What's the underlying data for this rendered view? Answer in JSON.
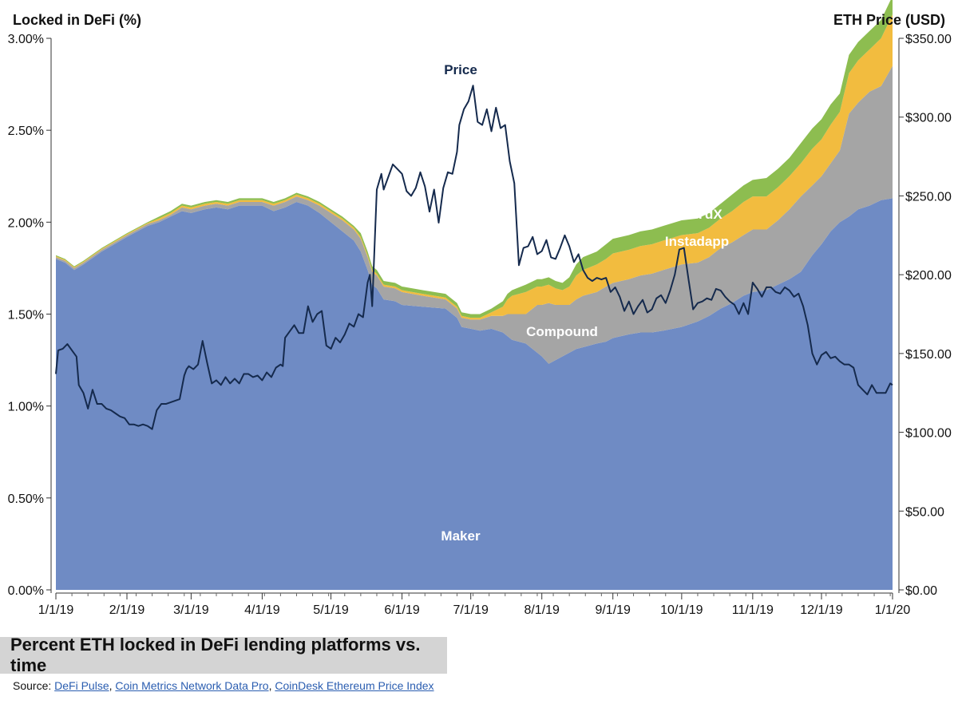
{
  "chart_data": {
    "type": "area",
    "title": "Percent ETH locked in DeFi lending platforms vs. time",
    "left_axis": {
      "label": "Locked in DeFi (%)",
      "min": 0,
      "max": 3.0,
      "ticks": [
        0,
        0.5,
        1.0,
        1.5,
        2.0,
        2.5,
        3.0
      ],
      "tick_labels": [
        "0.00%",
        "0.50%",
        "1.00%",
        "1.50%",
        "2.00%",
        "2.50%",
        "3.00%"
      ]
    },
    "right_axis": {
      "label": "ETH Price (USD)",
      "min": 0,
      "max": 350,
      "ticks": [
        0,
        50,
        100,
        150,
        200,
        250,
        300,
        350
      ],
      "tick_labels": [
        "$0.00",
        "$50.00",
        "$100.00",
        "$150.00",
        "$200.00",
        "$250.00",
        "$300.00",
        "$350.00"
      ]
    },
    "x_axis": {
      "start_day": 0,
      "end_day": 365,
      "ticks": [
        0,
        31,
        59,
        90,
        120,
        151,
        181,
        212,
        243,
        273,
        304,
        334,
        365
      ],
      "tick_labels": [
        "1/1/19",
        "2/1/19",
        "3/1/19",
        "4/1/19",
        "5/1/19",
        "6/1/19",
        "7/1/19",
        "8/1/19",
        "9/1/19",
        "10/1/19",
        "11/1/19",
        "12/1/19",
        "1/1/20"
      ]
    },
    "x_days": [
      0,
      4,
      8,
      12,
      20,
      31,
      40,
      45,
      50,
      55,
      59,
      65,
      70,
      75,
      80,
      90,
      95,
      100,
      105,
      110,
      115,
      120,
      125,
      130,
      133,
      136,
      138,
      140,
      143,
      148,
      151,
      160,
      170,
      175,
      177,
      181,
      185,
      190,
      195,
      197,
      199,
      205,
      210,
      212,
      215,
      218,
      221,
      224,
      227,
      230,
      236,
      240,
      243,
      250,
      255,
      260,
      265,
      273,
      280,
      285,
      290,
      295,
      300,
      304,
      310,
      315,
      320,
      325,
      330,
      334,
      338,
      342,
      346,
      350,
      355,
      360,
      365
    ],
    "series": [
      {
        "name": "Maker",
        "color": "#6f8bc4",
        "values": [
          1.8,
          1.78,
          1.74,
          1.77,
          1.84,
          1.92,
          1.98,
          2.0,
          2.03,
          2.06,
          2.05,
          2.07,
          2.08,
          2.07,
          2.09,
          2.09,
          2.06,
          2.08,
          2.11,
          2.09,
          2.05,
          2.0,
          1.95,
          1.9,
          1.84,
          1.74,
          1.66,
          1.64,
          1.58,
          1.57,
          1.55,
          1.54,
          1.53,
          1.48,
          1.43,
          1.42,
          1.41,
          1.42,
          1.4,
          1.38,
          1.36,
          1.34,
          1.29,
          1.27,
          1.23,
          1.25,
          1.27,
          1.29,
          1.31,
          1.32,
          1.34,
          1.35,
          1.37,
          1.39,
          1.4,
          1.4,
          1.41,
          1.43,
          1.46,
          1.49,
          1.53,
          1.56,
          1.6,
          1.62,
          1.63,
          1.66,
          1.69,
          1.73,
          1.82,
          1.88,
          1.95,
          2.0,
          2.03,
          2.07,
          2.09,
          2.12,
          2.13
        ]
      },
      {
        "name": "Compound",
        "color": "#a5a5a5",
        "values": [
          0.01,
          0.01,
          0.01,
          0.01,
          0.01,
          0.01,
          0.01,
          0.01,
          0.01,
          0.02,
          0.02,
          0.02,
          0.02,
          0.02,
          0.02,
          0.02,
          0.03,
          0.03,
          0.03,
          0.03,
          0.04,
          0.05,
          0.06,
          0.06,
          0.07,
          0.07,
          0.07,
          0.07,
          0.07,
          0.07,
          0.07,
          0.06,
          0.05,
          0.05,
          0.05,
          0.05,
          0.06,
          0.07,
          0.09,
          0.12,
          0.14,
          0.16,
          0.26,
          0.28,
          0.33,
          0.3,
          0.28,
          0.26,
          0.27,
          0.28,
          0.28,
          0.3,
          0.3,
          0.3,
          0.31,
          0.32,
          0.33,
          0.34,
          0.32,
          0.32,
          0.33,
          0.33,
          0.33,
          0.34,
          0.33,
          0.35,
          0.38,
          0.41,
          0.38,
          0.37,
          0.37,
          0.39,
          0.56,
          0.58,
          0.62,
          0.62,
          0.72
        ]
      },
      {
        "name": "Instadapp",
        "color": "#f2bc3f",
        "values": [
          0.005,
          0.005,
          0.005,
          0.005,
          0.005,
          0.005,
          0.005,
          0.01,
          0.01,
          0.01,
          0.01,
          0.01,
          0.01,
          0.01,
          0.01,
          0.01,
          0.01,
          0.01,
          0.01,
          0.01,
          0.01,
          0.01,
          0.01,
          0.01,
          0.01,
          0.01,
          0.01,
          0.01,
          0.01,
          0.01,
          0.01,
          0.01,
          0.01,
          0.01,
          0.01,
          0.01,
          0.01,
          0.02,
          0.05,
          0.08,
          0.1,
          0.12,
          0.1,
          0.1,
          0.1,
          0.09,
          0.08,
          0.1,
          0.13,
          0.14,
          0.15,
          0.15,
          0.16,
          0.16,
          0.16,
          0.16,
          0.16,
          0.16,
          0.16,
          0.16,
          0.16,
          0.17,
          0.18,
          0.18,
          0.18,
          0.18,
          0.18,
          0.18,
          0.2,
          0.2,
          0.21,
          0.21,
          0.22,
          0.23,
          0.23,
          0.26,
          0.28
        ]
      },
      {
        "name": "dYdX",
        "color": "#8dbd50",
        "values": [
          0.005,
          0.005,
          0.005,
          0.005,
          0.005,
          0.005,
          0.005,
          0.01,
          0.01,
          0.01,
          0.01,
          0.01,
          0.01,
          0.01,
          0.01,
          0.01,
          0.01,
          0.01,
          0.01,
          0.01,
          0.01,
          0.01,
          0.01,
          0.01,
          0.02,
          0.02,
          0.02,
          0.02,
          0.02,
          0.02,
          0.02,
          0.02,
          0.02,
          0.02,
          0.02,
          0.02,
          0.02,
          0.02,
          0.03,
          0.03,
          0.03,
          0.04,
          0.04,
          0.04,
          0.04,
          0.04,
          0.04,
          0.05,
          0.06,
          0.07,
          0.07,
          0.08,
          0.08,
          0.08,
          0.08,
          0.08,
          0.08,
          0.08,
          0.08,
          0.08,
          0.08,
          0.09,
          0.09,
          0.09,
          0.1,
          0.1,
          0.1,
          0.11,
          0.11,
          0.11,
          0.11,
          0.1,
          0.1,
          0.1,
          0.1,
          0.1,
          0.1
        ]
      },
      {
        "name": "Price",
        "color": "#152a4d",
        "axis": "right",
        "x_days": [
          0,
          1,
          3,
          5,
          7,
          9,
          10,
          12,
          14,
          16,
          18,
          20,
          22,
          24,
          26,
          28,
          30,
          32,
          34,
          36,
          38,
          40,
          42,
          44,
          46,
          48,
          50,
          52,
          54,
          56,
          57,
          58,
          60,
          62,
          64,
          66,
          68,
          70,
          72,
          74,
          76,
          78,
          80,
          82,
          84,
          86,
          88,
          90,
          92,
          94,
          96,
          98,
          99,
          100,
          102,
          104,
          106,
          108,
          110,
          112,
          114,
          116,
          118,
          120,
          122,
          124,
          126,
          128,
          130,
          132,
          134,
          136,
          137,
          138,
          140,
          142,
          143,
          145,
          147,
          149,
          151,
          153,
          155,
          157,
          159,
          161,
          163,
          165,
          167,
          169,
          171,
          173,
          175,
          176,
          178,
          180,
          182,
          184,
          186,
          188,
          190,
          192,
          194,
          196,
          198,
          200,
          202,
          204,
          206,
          208,
          210,
          212,
          214,
          216,
          218,
          220,
          222,
          224,
          226,
          228,
          230,
          232,
          234,
          236,
          238,
          240,
          242,
          244,
          246,
          248,
          250,
          252,
          254,
          256,
          258,
          260,
          262,
          264,
          266,
          268,
          270,
          272,
          274,
          276,
          278,
          280,
          282,
          284,
          286,
          288,
          290,
          292,
          294,
          296,
          298,
          300,
          302,
          304,
          306,
          308,
          310,
          312,
          314,
          316,
          318,
          320,
          322,
          324,
          326,
          328,
          330,
          332,
          334,
          336,
          338,
          340,
          342,
          344,
          346,
          348,
          350,
          352,
          354,
          356,
          358,
          360,
          362,
          364,
          365
        ],
        "values": [
          137,
          152,
          153,
          156,
          152,
          148,
          130,
          125,
          115,
          127,
          118,
          118,
          115,
          114,
          112,
          110,
          109,
          105,
          105,
          104,
          105,
          104,
          102,
          114,
          118,
          118,
          119,
          120,
          121,
          136,
          140,
          142,
          140,
          143,
          158,
          144,
          131,
          133,
          130,
          135,
          131,
          134,
          131,
          137,
          137,
          135,
          136,
          133,
          138,
          135,
          141,
          143,
          142,
          160,
          164,
          168,
          163,
          163,
          180,
          170,
          175,
          177,
          155,
          153,
          160,
          157,
          162,
          169,
          167,
          175,
          173,
          195,
          200,
          180,
          254,
          264,
          254,
          262,
          270,
          267,
          264,
          253,
          250,
          255,
          265,
          256,
          240,
          254,
          233,
          255,
          265,
          264,
          278,
          295,
          305,
          310,
          320,
          297,
          295,
          305,
          291,
          306,
          293,
          295,
          272,
          258,
          206,
          217,
          218,
          224,
          213,
          215,
          222,
          211,
          210,
          217,
          225,
          218,
          208,
          213,
          203,
          198,
          196,
          198,
          197,
          198,
          189,
          192,
          186,
          177,
          183,
          175,
          180,
          184,
          176,
          178,
          185,
          187,
          182,
          190,
          200,
          216,
          217,
          197,
          178,
          182,
          183,
          185,
          184,
          191,
          190,
          186,
          183,
          181,
          175,
          182,
          175,
          195,
          191,
          186,
          192,
          192,
          189,
          188,
          192,
          190,
          186,
          188,
          180,
          168,
          150,
          143,
          149,
          151,
          147,
          148,
          145,
          143,
          143,
          141,
          130,
          127,
          124,
          130,
          125,
          125,
          125,
          131,
          130
        ]
      }
    ],
    "annotations": [
      {
        "text": "Price",
        "series": "Price"
      },
      {
        "text": "dYdX",
        "series": "dYdX"
      },
      {
        "text": "Instadapp",
        "series": "Instadapp"
      },
      {
        "text": "Compound",
        "series": "Compound"
      },
      {
        "text": "Maker",
        "series": "Maker"
      }
    ],
    "grid": false
  },
  "caption": "Percent ETH locked in DeFi lending platforms vs. time",
  "source": {
    "prefix": "Source: ",
    "links": [
      "DeFi Pulse",
      "Coin Metrics Network Data Pro",
      "CoinDesk Ethereum Price Index"
    ],
    "separator": ", "
  }
}
